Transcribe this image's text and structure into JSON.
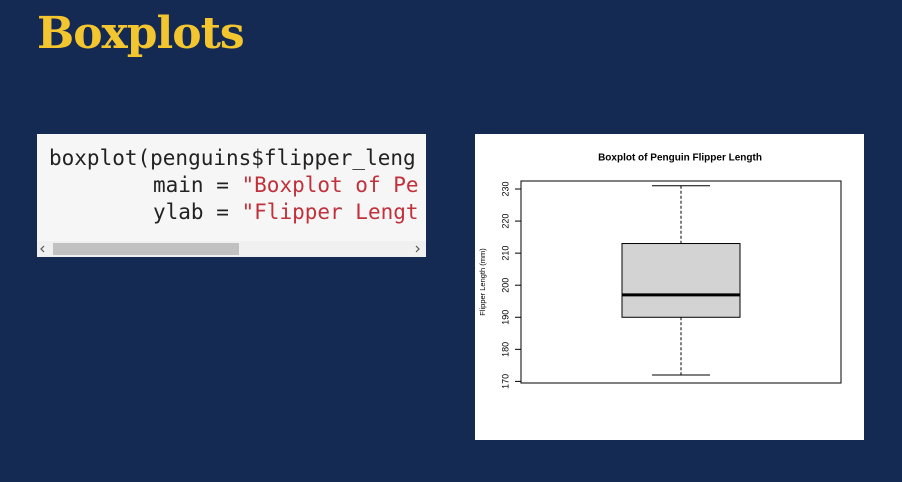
{
  "header": {
    "title": "Boxplots"
  },
  "code": {
    "lines": [
      [
        "boxplot(penguins$flipper_leng"
      ],
      [
        "main = ",
        "\"Boxplot of Pe"
      ],
      [
        "ylab = ",
        "\"Flipper Lengt"
      ]
    ]
  },
  "chart_data": {
    "type": "boxplot",
    "title": "Boxplot of Penguin Flipper Length",
    "ylabel": "Flipper Length (mm)",
    "min": 172,
    "q1": 190,
    "median": 197,
    "q3": 213,
    "max": 231,
    "color": "#d3d3d3",
    "ylim": [
      169.5,
      232.5
    ],
    "yticks": [
      170,
      180,
      190,
      200,
      210,
      220,
      230
    ]
  }
}
